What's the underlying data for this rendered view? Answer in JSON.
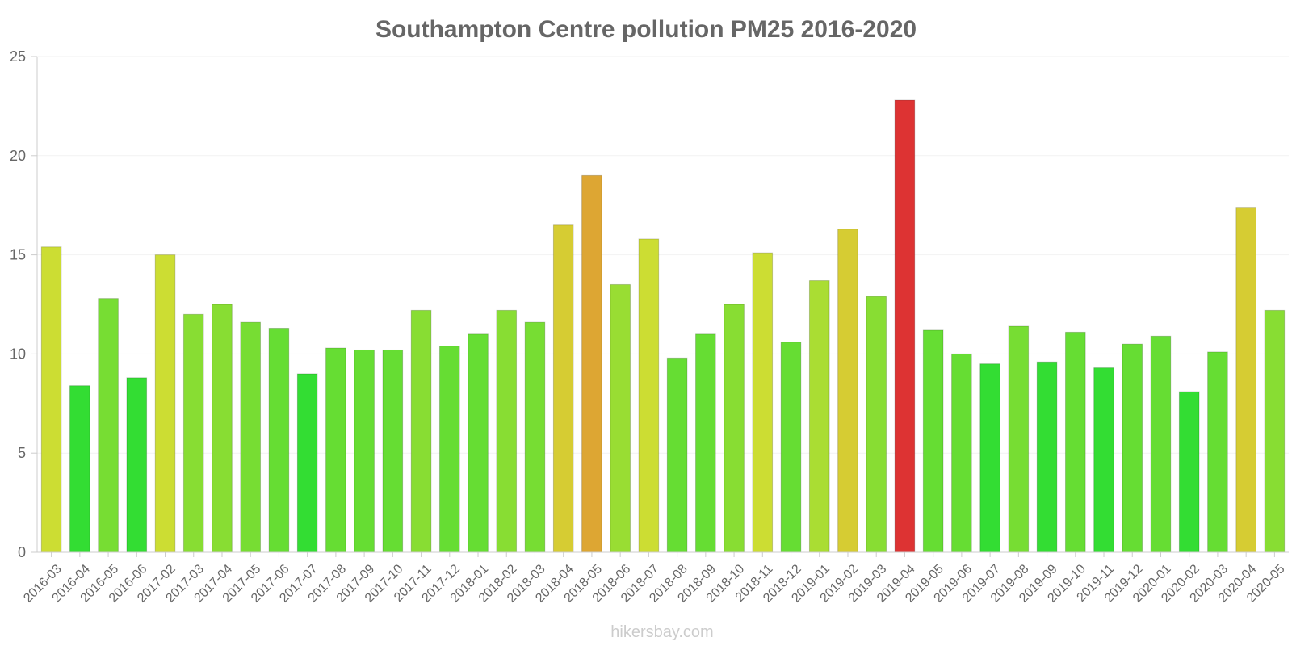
{
  "chart_data": {
    "type": "bar",
    "title": "Southampton Centre pollution PM25 2016-2020",
    "xlabel": "",
    "ylabel": "",
    "ylim": [
      0,
      25
    ],
    "yticks": [
      0,
      5,
      10,
      15,
      20,
      25
    ],
    "grid": true,
    "categories": [
      "2016-03",
      "2016-04",
      "2016-05",
      "2016-06",
      "2017-02",
      "2017-03",
      "2017-04",
      "2017-05",
      "2017-06",
      "2017-07",
      "2017-08",
      "2017-09",
      "2017-10",
      "2017-11",
      "2017-12",
      "2018-01",
      "2018-02",
      "2018-03",
      "2018-04",
      "2018-05",
      "2018-06",
      "2018-07",
      "2018-08",
      "2018-09",
      "2018-10",
      "2018-11",
      "2018-12",
      "2019-01",
      "2019-02",
      "2019-03",
      "2019-04",
      "2019-05",
      "2019-06",
      "2019-07",
      "2019-08",
      "2019-09",
      "2019-10",
      "2019-11",
      "2019-12",
      "2020-01",
      "2020-02",
      "2020-03",
      "2020-04",
      "2020-05"
    ],
    "values": [
      15.4,
      8.4,
      12.8,
      8.8,
      15.0,
      12.0,
      12.5,
      11.6,
      11.3,
      9.0,
      10.3,
      10.2,
      10.2,
      12.2,
      10.4,
      11.0,
      12.2,
      11.6,
      16.5,
      19.0,
      13.5,
      15.8,
      9.8,
      11.0,
      12.5,
      15.1,
      10.6,
      13.7,
      16.3,
      12.9,
      22.8,
      11.2,
      10.0,
      9.5,
      11.4,
      9.6,
      11.1,
      9.3,
      10.5,
      10.9,
      8.1,
      10.1,
      17.4,
      12.2
    ],
    "colors": [
      "#ccdd33",
      "#33dd33",
      "#77dd33",
      "#33dd33",
      "#ccdd33",
      "#88dd33",
      "#88dd33",
      "#77dd33",
      "#66dd33",
      "#33dd33",
      "#66dd33",
      "#66dd33",
      "#66dd33",
      "#88dd33",
      "#66dd33",
      "#66dd33",
      "#88dd33",
      "#77dd33",
      "#d6cc33",
      "#dda633",
      "#99dd33",
      "#ccdd33",
      "#66dd33",
      "#66dd33",
      "#88dd33",
      "#ccdd33",
      "#66dd33",
      "#aadd33",
      "#d6cc33",
      "#88dd33",
      "#dd3333",
      "#66dd33",
      "#66dd33",
      "#33dd33",
      "#77dd33",
      "#33dd33",
      "#66dd33",
      "#33dd33",
      "#66dd33",
      "#66dd33",
      "#33dd33",
      "#66dd33",
      "#d6cc33",
      "#88dd33"
    ]
  },
  "watermark": "hikersbay.com"
}
